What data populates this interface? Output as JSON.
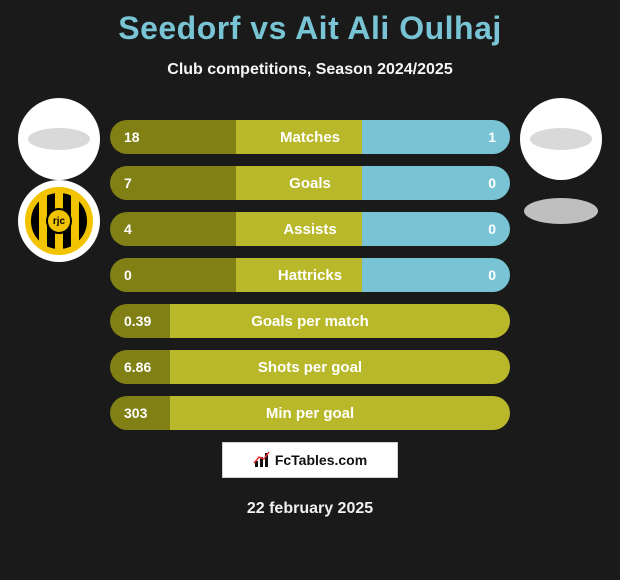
{
  "title": "Seedorf vs Ait Ali Oulhaj",
  "subtitle": "Club competitions, Season 2024/2025",
  "date": "22 february 2025",
  "brand": "FcTables.com",
  "colors": {
    "title": "#78c4d4",
    "left_dark": "#808015",
    "left_light": "#b8b82a",
    "right": "#78c4d4",
    "single": "#b8b82a",
    "text": "#ffffff",
    "bg": "#1a1a1a"
  },
  "club_left_badge": "rjc",
  "rows": [
    {
      "label": "Matches",
      "left": "18",
      "right": "1",
      "left_pct": 63,
      "right_pct": 37,
      "split": true
    },
    {
      "label": "Goals",
      "left": "7",
      "right": "0",
      "left_pct": 63,
      "right_pct": 37,
      "split": true
    },
    {
      "label": "Assists",
      "left": "4",
      "right": "0",
      "left_pct": 63,
      "right_pct": 37,
      "split": true
    },
    {
      "label": "Hattricks",
      "left": "0",
      "right": "0",
      "left_pct": 63,
      "right_pct": 37,
      "split": true
    },
    {
      "label": "Goals per match",
      "left": "0.39",
      "right": "",
      "left_pct": 100,
      "right_pct": 0,
      "split": false
    },
    {
      "label": "Shots per goal",
      "left": "6.86",
      "right": "",
      "left_pct": 100,
      "right_pct": 0,
      "split": false
    },
    {
      "label": "Min per goal",
      "left": "303",
      "right": "",
      "left_pct": 100,
      "right_pct": 0,
      "split": false
    }
  ]
}
